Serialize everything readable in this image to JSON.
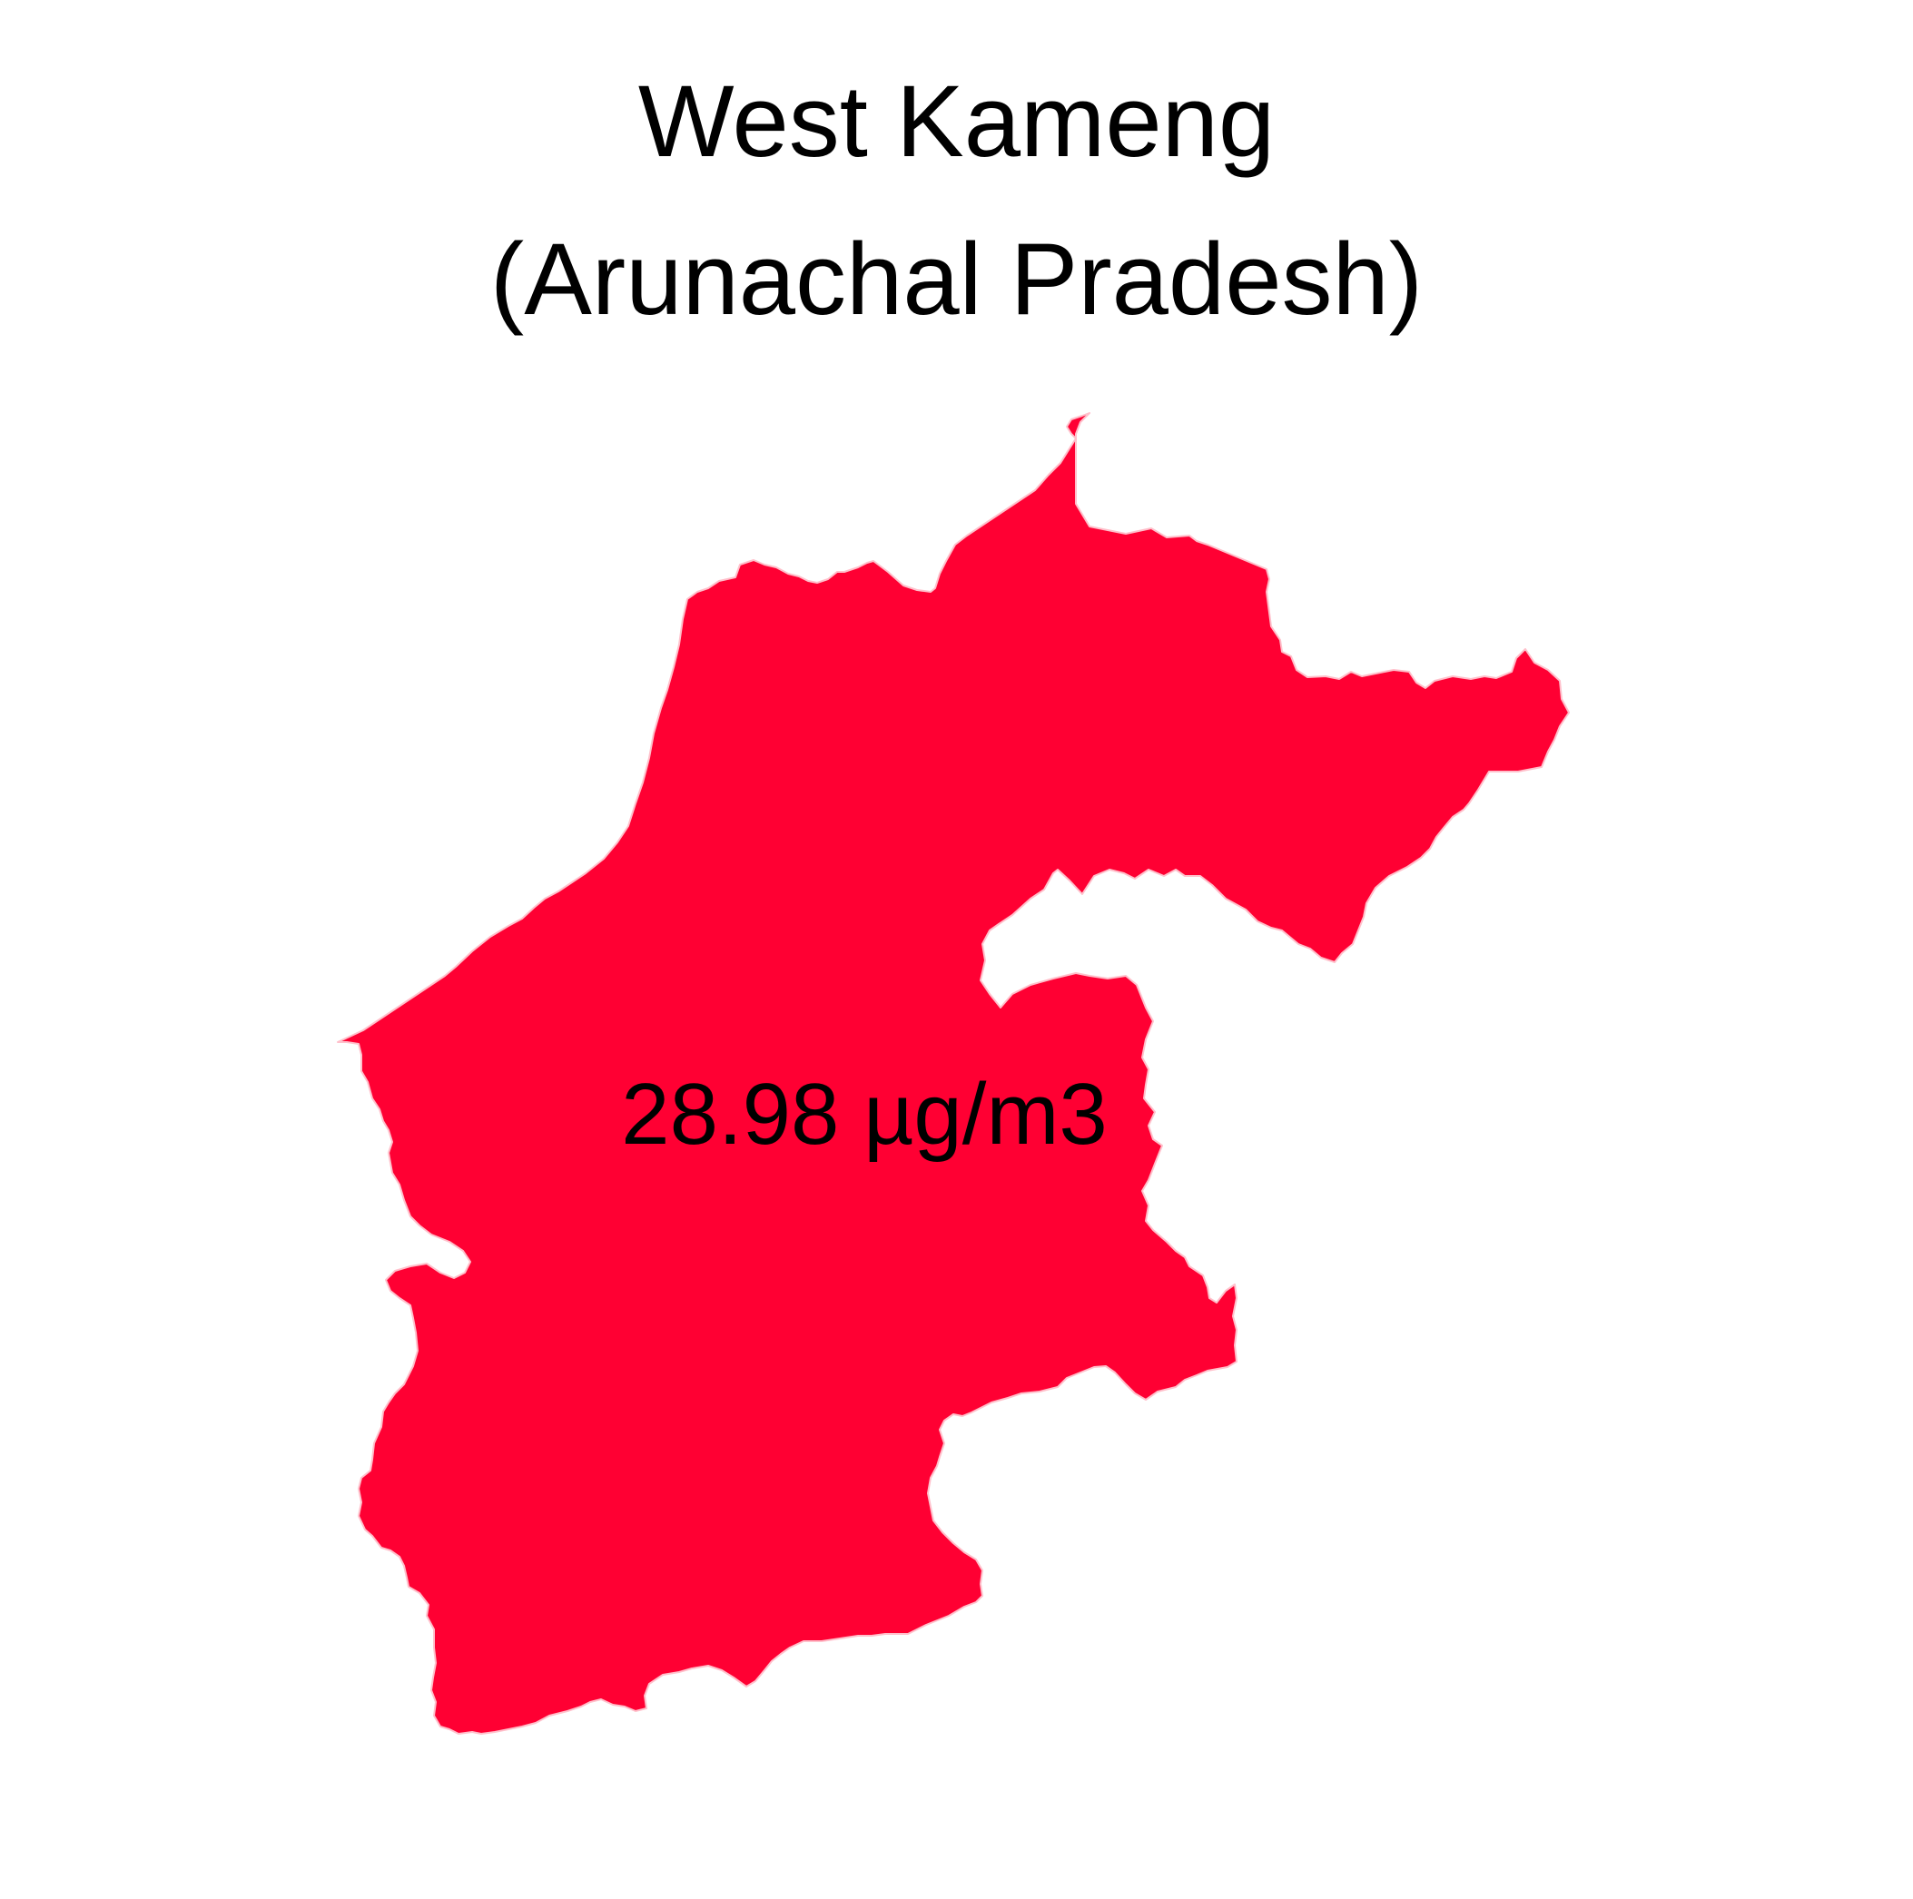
{
  "title": {
    "line1": "West Kameng",
    "line2": "(Arunachal Pradesh)"
  },
  "region": {
    "name": "West Kameng",
    "state": "Arunachal Pradesh",
    "value": 28.98,
    "unit": "µg/m3",
    "label": "28.98 µg/m3",
    "fill_color": "#ff0033",
    "stroke_color": "#ffc0cb"
  }
}
